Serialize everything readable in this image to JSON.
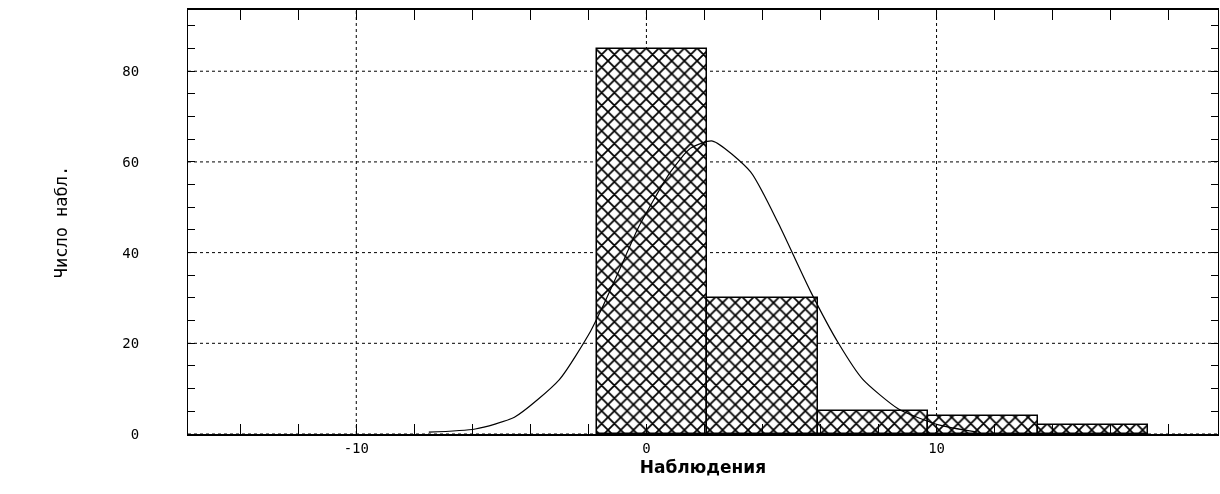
{
  "chart_data": {
    "type": "histogram",
    "xlabel": "Наблюдения",
    "ylabel": "Число набл.",
    "bins": [
      -1.7,
      2.1,
      5.9,
      9.7,
      13.5,
      17.3
    ],
    "values": [
      85,
      30,
      5,
      4,
      2
    ],
    "color": "#000000",
    "series": [
      {
        "type": "line",
        "color": "#000000",
        "x": [
          -7.5,
          -5.9,
          -4.55,
          -3.0,
          -1.93,
          -1.52,
          -0.83,
          -0.28,
          0.83,
          1.52,
          2.28,
          3.59,
          4.55,
          5.66,
          6.62,
          7.45,
          8.69,
          10.07,
          11.4
        ],
        "values": [
          0.4,
          1.1,
          3.7,
          12,
          22.6,
          27.9,
          37.6,
          45.5,
          57.8,
          63,
          64.6,
          57.8,
          46.4,
          31.4,
          20,
          12.1,
          5.5,
          2,
          0.4
        ]
      }
    ],
    "xlim": [
      -15.8,
      19.7
    ],
    "xticks": [
      {
        "value": -14,
        "label": null
      },
      {
        "value": -12,
        "label": null
      },
      -10,
      {
        "value": -8,
        "label": null
      },
      {
        "value": -6,
        "label": null
      },
      {
        "value": -4,
        "label": null
      },
      {
        "value": -2,
        "label": null
      },
      0,
      {
        "value": 2,
        "label": null
      },
      {
        "value": 4,
        "label": null
      },
      {
        "value": 6,
        "label": null
      },
      {
        "value": 8,
        "label": null
      },
      10,
      {
        "value": 12,
        "label": null
      },
      {
        "value": 14,
        "label": null
      },
      {
        "value": 16,
        "label": null
      },
      {
        "value": 18,
        "label": null
      }
    ],
    "ylim": [
      0,
      93.5
    ],
    "yticks": [
      0,
      {
        "value": 5,
        "label": null
      },
      {
        "value": 10,
        "label": null
      },
      {
        "value": 15,
        "label": null
      },
      20,
      {
        "value": 25,
        "label": null
      },
      {
        "value": 30,
        "label": null
      },
      {
        "value": 35,
        "label": null
      },
      40,
      {
        "value": 45,
        "label": null
      },
      {
        "value": 50,
        "label": null
      },
      {
        "value": 55,
        "label": null
      },
      60,
      {
        "value": 65,
        "label": null
      },
      {
        "value": 70,
        "label": null
      },
      {
        "value": 75,
        "label": null
      },
      80,
      {
        "value": 85,
        "label": null
      },
      {
        "value": 90,
        "label": null
      }
    ],
    "grid": true,
    "marker": "none",
    "line_style": "solid"
  }
}
